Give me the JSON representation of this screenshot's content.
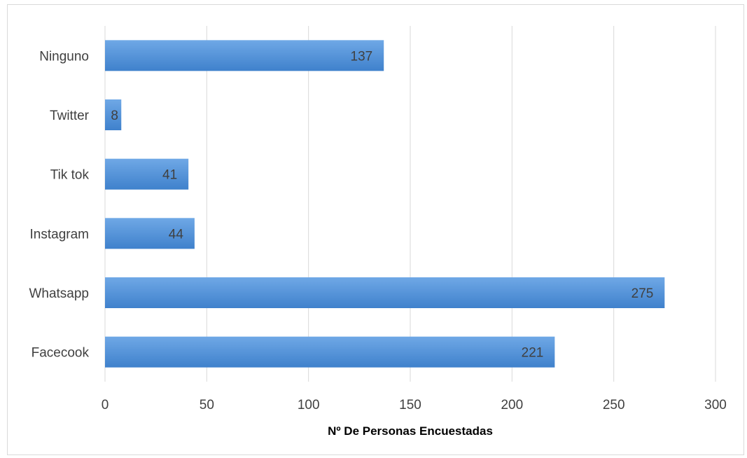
{
  "chart_data": {
    "type": "bar",
    "orientation": "horizontal",
    "categories": [
      "Ninguno",
      "Twitter",
      "Tik tok",
      "Instagram",
      "Whatsapp",
      "Facecook"
    ],
    "values": [
      137,
      8,
      41,
      44,
      275,
      221
    ],
    "data_labels": [
      "137",
      "8",
      "41",
      "44",
      "275",
      "221"
    ],
    "title": "",
    "xlabel": "Nº De Personas Encuestadas",
    "ylabel": "",
    "xlim": [
      0,
      300
    ],
    "x_ticks": [
      0,
      50,
      100,
      150,
      200,
      250,
      300
    ],
    "x_tick_labels": [
      "0",
      "50",
      "100",
      "150",
      "200",
      "250",
      "300"
    ],
    "grid": "vertical",
    "legend": "none",
    "colors": {
      "bar_top": "#6fa8e6",
      "bar_bottom": "#3f81cc",
      "gridline": "#d9d9d9",
      "text": "#404040"
    }
  }
}
